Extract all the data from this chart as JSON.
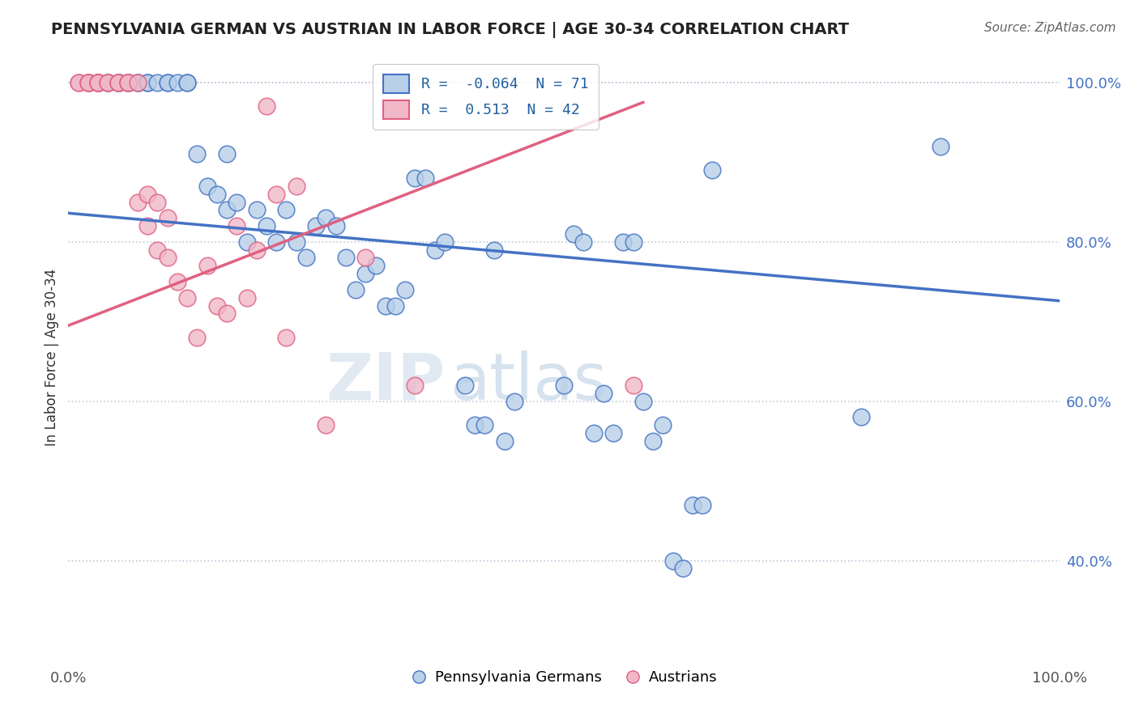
{
  "title": "PENNSYLVANIA GERMAN VS AUSTRIAN IN LABOR FORCE | AGE 30-34 CORRELATION CHART",
  "source": "Source: ZipAtlas.com",
  "ylabel": "In Labor Force | Age 30-34",
  "xlim": [
    0,
    1.0
  ],
  "ylim": [
    0.27,
    1.04
  ],
  "yticks": [
    0.4,
    0.6,
    0.8,
    1.0
  ],
  "yticklabels": [
    "40.0%",
    "60.0%",
    "80.0%",
    "100.0%"
  ],
  "xtick_positions": [
    0.0,
    1.0
  ],
  "xticklabels": [
    "0.0%",
    "100.0%"
  ],
  "blue_R": -0.064,
  "blue_N": 71,
  "pink_R": 0.513,
  "pink_N": 42,
  "blue_fill": "#b8d0e8",
  "blue_edge": "#4472c4",
  "pink_fill": "#f0b8c8",
  "pink_edge": "#e06080",
  "legend_blue_label": "Pennsylvania Germans",
  "legend_pink_label": "Austrians",
  "watermark_zip": "ZIP",
  "watermark_atlas": "atlas",
  "blue_line_x0": 0.0,
  "blue_line_x1": 1.0,
  "blue_line_y0": 0.836,
  "blue_line_y1": 0.726,
  "pink_line_x0": 0.0,
  "pink_line_x1": 0.58,
  "pink_line_y0": 0.695,
  "pink_line_y1": 0.975,
  "blue_scatter_x": [
    0.02,
    0.03,
    0.03,
    0.04,
    0.04,
    0.05,
    0.05,
    0.05,
    0.06,
    0.06,
    0.07,
    0.07,
    0.08,
    0.08,
    0.09,
    0.1,
    0.1,
    0.11,
    0.12,
    0.12,
    0.13,
    0.14,
    0.15,
    0.16,
    0.16,
    0.17,
    0.18,
    0.19,
    0.2,
    0.21,
    0.22,
    0.23,
    0.24,
    0.25,
    0.26,
    0.27,
    0.28,
    0.29,
    0.3,
    0.31,
    0.32,
    0.33,
    0.34,
    0.35,
    0.36,
    0.37,
    0.38,
    0.4,
    0.41,
    0.42,
    0.43,
    0.44,
    0.45,
    0.5,
    0.51,
    0.52,
    0.53,
    0.54,
    0.55,
    0.56,
    0.57,
    0.58,
    0.59,
    0.6,
    0.61,
    0.62,
    0.63,
    0.64,
    0.65,
    0.8,
    0.88
  ],
  "blue_scatter_y": [
    1.0,
    1.0,
    1.0,
    1.0,
    1.0,
    1.0,
    1.0,
    1.0,
    1.0,
    1.0,
    1.0,
    1.0,
    1.0,
    1.0,
    1.0,
    1.0,
    1.0,
    1.0,
    1.0,
    1.0,
    0.91,
    0.87,
    0.86,
    0.84,
    0.91,
    0.85,
    0.8,
    0.84,
    0.82,
    0.8,
    0.84,
    0.8,
    0.78,
    0.82,
    0.83,
    0.82,
    0.78,
    0.74,
    0.76,
    0.77,
    0.72,
    0.72,
    0.74,
    0.88,
    0.88,
    0.79,
    0.8,
    0.62,
    0.57,
    0.57,
    0.79,
    0.55,
    0.6,
    0.62,
    0.81,
    0.8,
    0.56,
    0.61,
    0.56,
    0.8,
    0.8,
    0.6,
    0.55,
    0.57,
    0.4,
    0.39,
    0.47,
    0.47,
    0.89,
    0.58,
    0.92
  ],
  "pink_scatter_x": [
    0.01,
    0.01,
    0.02,
    0.02,
    0.02,
    0.03,
    0.03,
    0.03,
    0.03,
    0.04,
    0.04,
    0.05,
    0.05,
    0.05,
    0.06,
    0.06,
    0.06,
    0.07,
    0.07,
    0.08,
    0.08,
    0.09,
    0.09,
    0.1,
    0.1,
    0.11,
    0.12,
    0.13,
    0.14,
    0.15,
    0.16,
    0.17,
    0.18,
    0.19,
    0.2,
    0.21,
    0.22,
    0.23,
    0.26,
    0.3,
    0.35,
    0.57
  ],
  "pink_scatter_y": [
    1.0,
    1.0,
    1.0,
    1.0,
    1.0,
    1.0,
    1.0,
    1.0,
    1.0,
    1.0,
    1.0,
    1.0,
    1.0,
    1.0,
    1.0,
    1.0,
    1.0,
    1.0,
    0.85,
    0.82,
    0.86,
    0.79,
    0.85,
    0.78,
    0.83,
    0.75,
    0.73,
    0.68,
    0.77,
    0.72,
    0.71,
    0.82,
    0.73,
    0.79,
    0.97,
    0.86,
    0.68,
    0.87,
    0.57,
    0.78,
    0.62,
    0.62
  ]
}
